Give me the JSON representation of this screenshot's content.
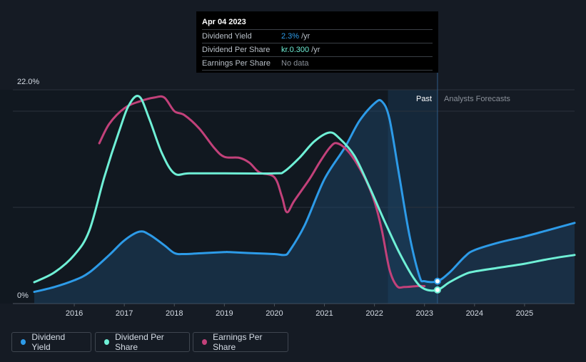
{
  "tooltip": {
    "date": "Apr 04 2023",
    "rows": [
      {
        "label": "Dividend Yield",
        "value": "2.3%",
        "unit": "/yr",
        "color": "#2d9be8"
      },
      {
        "label": "Dividend Per Share",
        "value": "kr.0.300",
        "unit": "/yr",
        "color": "#6ff0d6"
      },
      {
        "label": "Earnings Per Share",
        "value": "No data",
        "unit": "",
        "color": "#8a9099"
      }
    ]
  },
  "regions": {
    "past_label": "Past",
    "forecast_label": "Analysts Forecasts"
  },
  "legend": [
    {
      "label": "Dividend Yield",
      "color": "#2d9be8"
    },
    {
      "label": "Dividend Per Share",
      "color": "#6ff0d6"
    },
    {
      "label": "Earnings Per Share",
      "color": "#c2417a"
    }
  ],
  "chart_data": {
    "type": "line",
    "title": "",
    "xlabel": "",
    "ylabel": "",
    "y_top_label": "22.0%",
    "y_bottom_label": "0%",
    "xlim": [
      2015.2,
      2026.0
    ],
    "ylim": [
      0,
      22.0
    ],
    "x_ticks": [
      2016,
      2017,
      2018,
      2019,
      2020,
      2021,
      2022,
      2023,
      2024,
      2025
    ],
    "x_tick_labels": [
      "2016",
      "2017",
      "2018",
      "2019",
      "2020",
      "2021",
      "2022",
      "2023",
      "2024",
      "2025"
    ],
    "past_end_x": 2023.26,
    "forecast_shade_start_x": 2022.27,
    "series": [
      {
        "name": "Dividend Yield",
        "color": "#2d9be8",
        "filled": true,
        "points": [
          [
            2015.2,
            1.2
          ],
          [
            2015.6,
            1.7
          ],
          [
            2016.0,
            2.4
          ],
          [
            2016.3,
            3.2
          ],
          [
            2016.7,
            5.0
          ],
          [
            2017.0,
            6.5
          ],
          [
            2017.3,
            7.4
          ],
          [
            2017.5,
            7.1
          ],
          [
            2017.8,
            6.0
          ],
          [
            2018.0,
            5.2
          ],
          [
            2018.2,
            5.1
          ],
          [
            2018.6,
            5.2
          ],
          [
            2019.0,
            5.3
          ],
          [
            2019.1,
            5.3
          ],
          [
            2019.5,
            5.2
          ],
          [
            2020.0,
            5.1
          ],
          [
            2020.2,
            5.0
          ],
          [
            2020.3,
            5.4
          ],
          [
            2020.6,
            8.0
          ],
          [
            2021.0,
            12.8
          ],
          [
            2021.4,
            16.0
          ],
          [
            2021.7,
            18.8
          ],
          [
            2022.0,
            20.6
          ],
          [
            2022.15,
            20.8
          ],
          [
            2022.3,
            19.0
          ],
          [
            2022.5,
            13.0
          ],
          [
            2022.7,
            7.0
          ],
          [
            2022.9,
            2.8
          ],
          [
            2023.0,
            2.3
          ],
          [
            2023.26,
            2.3
          ],
          [
            2023.5,
            3.2
          ],
          [
            2023.8,
            4.8
          ],
          [
            2024.0,
            5.5
          ],
          [
            2024.5,
            6.3
          ],
          [
            2025.0,
            6.9
          ],
          [
            2025.5,
            7.6
          ],
          [
            2026.0,
            8.3
          ]
        ]
      },
      {
        "name": "Dividend Per Share",
        "color": "#6ff0d6",
        "filled": false,
        "points": [
          [
            2015.2,
            2.2
          ],
          [
            2015.6,
            3.2
          ],
          [
            2016.0,
            5.0
          ],
          [
            2016.3,
            7.5
          ],
          [
            2016.6,
            13.0
          ],
          [
            2016.9,
            17.8
          ],
          [
            2017.1,
            20.5
          ],
          [
            2017.3,
            21.3
          ],
          [
            2017.5,
            19.0
          ],
          [
            2017.75,
            15.5
          ],
          [
            2018.0,
            13.4
          ],
          [
            2018.3,
            13.4
          ],
          [
            2019.0,
            13.4
          ],
          [
            2020.0,
            13.4
          ],
          [
            2020.2,
            13.6
          ],
          [
            2020.5,
            15.0
          ],
          [
            2020.8,
            16.7
          ],
          [
            2021.1,
            17.6
          ],
          [
            2021.3,
            17.0
          ],
          [
            2021.6,
            15.2
          ],
          [
            2021.9,
            12.0
          ],
          [
            2022.2,
            8.5
          ],
          [
            2022.5,
            5.2
          ],
          [
            2022.8,
            2.5
          ],
          [
            2023.0,
            1.5
          ],
          [
            2023.26,
            1.4
          ],
          [
            2023.5,
            2.2
          ],
          [
            2023.8,
            3.0
          ],
          [
            2024.0,
            3.3
          ],
          [
            2024.5,
            3.7
          ],
          [
            2025.0,
            4.1
          ],
          [
            2025.5,
            4.6
          ],
          [
            2026.0,
            5.0
          ]
        ]
      },
      {
        "name": "Earnings Per Share",
        "color": "#c2417a",
        "filled": false,
        "points": [
          [
            2016.5,
            16.5
          ],
          [
            2016.7,
            18.5
          ],
          [
            2017.0,
            20.1
          ],
          [
            2017.3,
            20.8
          ],
          [
            2017.6,
            21.2
          ],
          [
            2017.8,
            21.2
          ],
          [
            2018.0,
            19.8
          ],
          [
            2018.2,
            19.4
          ],
          [
            2018.5,
            18.0
          ],
          [
            2018.8,
            16.0
          ],
          [
            2019.0,
            15.1
          ],
          [
            2019.3,
            15.0
          ],
          [
            2019.5,
            14.5
          ],
          [
            2019.7,
            13.5
          ],
          [
            2020.0,
            13.0
          ],
          [
            2020.15,
            11.0
          ],
          [
            2020.25,
            9.4
          ],
          [
            2020.4,
            10.6
          ],
          [
            2020.7,
            12.8
          ],
          [
            2020.9,
            14.5
          ],
          [
            2021.1,
            16.0
          ],
          [
            2021.25,
            16.5
          ],
          [
            2021.5,
            15.5
          ],
          [
            2021.8,
            13.0
          ],
          [
            2022.0,
            10.5
          ],
          [
            2022.15,
            7.5
          ],
          [
            2022.3,
            3.5
          ],
          [
            2022.45,
            1.8
          ],
          [
            2022.6,
            1.7
          ],
          [
            2022.85,
            1.8
          ],
          [
            2023.0,
            1.8
          ]
        ]
      }
    ],
    "markers": [
      {
        "series": "Dividend Yield",
        "x": 2023.26,
        "y": 2.3
      },
      {
        "series": "Dividend Per Share",
        "x": 2023.26,
        "y": 1.4
      }
    ]
  }
}
